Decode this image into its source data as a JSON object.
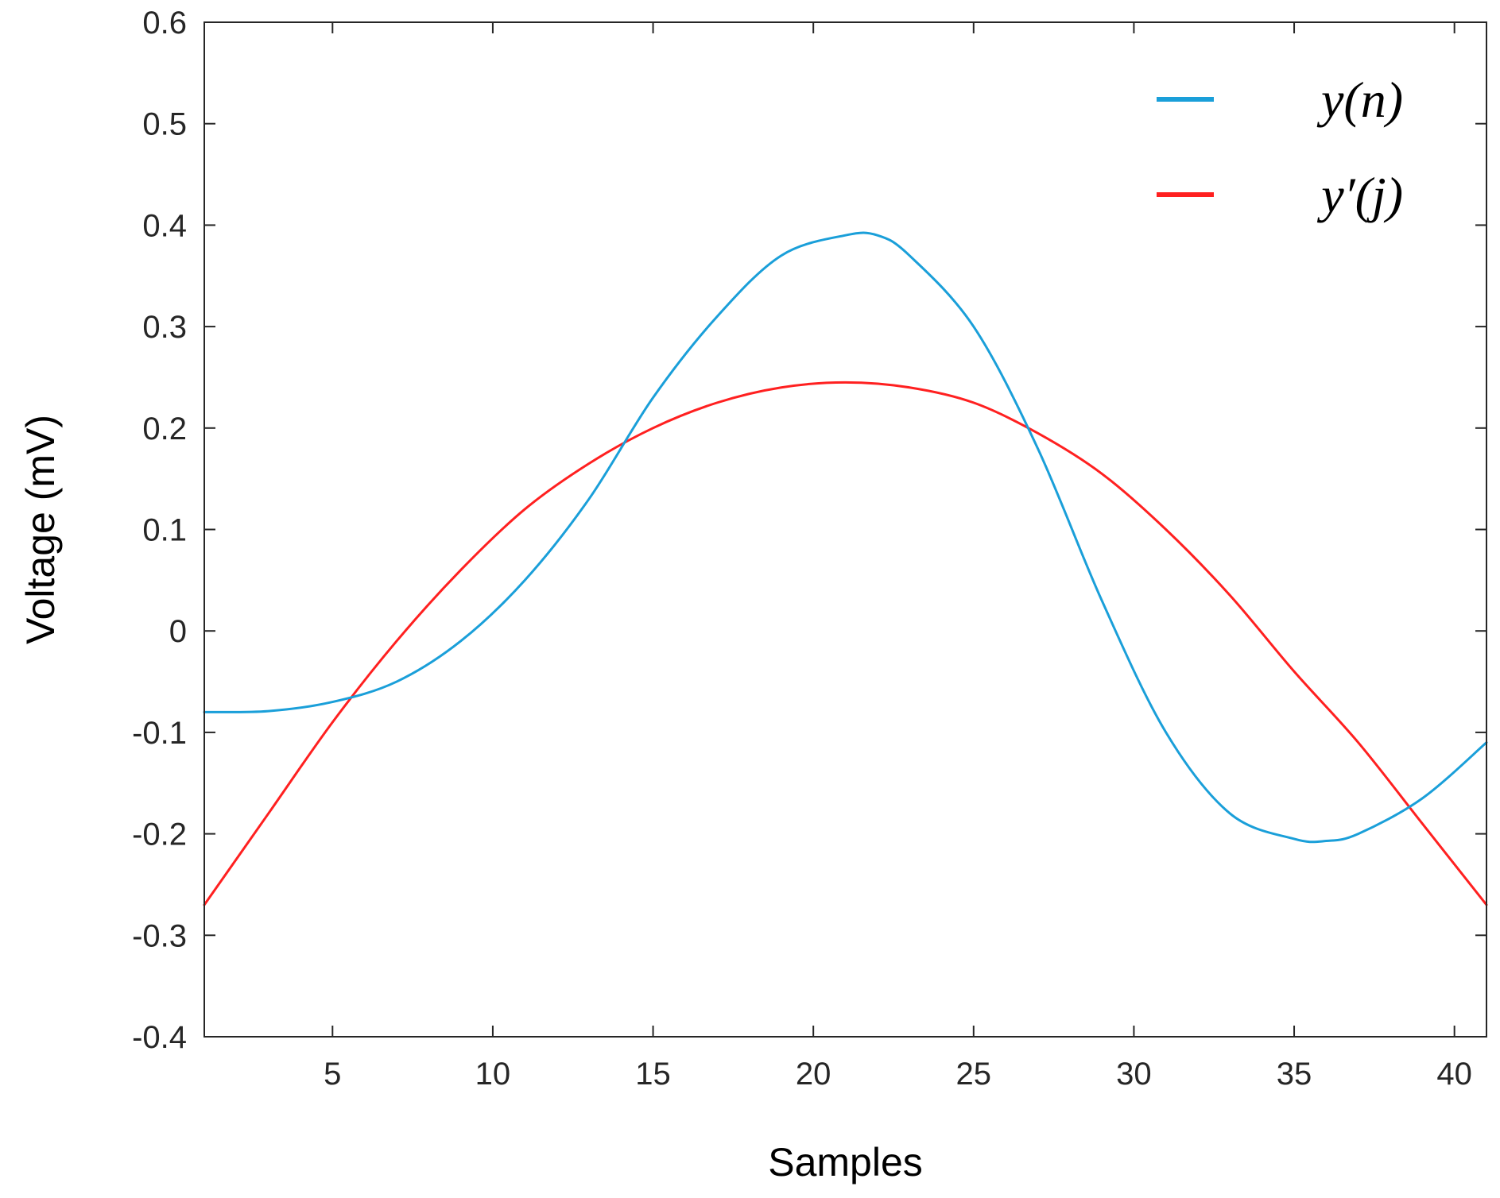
{
  "chart_data": {
    "type": "line",
    "title": "",
    "xlabel": "Samples",
    "ylabel": "Voltage (mV)",
    "xlim": [
      1,
      41
    ],
    "ylim": [
      -0.4,
      0.6
    ],
    "x_ticks": [
      5,
      10,
      15,
      20,
      25,
      30,
      35,
      40
    ],
    "x_tick_labels": [
      "5",
      "10",
      "15",
      "20",
      "25",
      "30",
      "35",
      "40"
    ],
    "y_ticks": [
      0.6,
      0.5,
      0.4,
      0.3,
      0.2,
      0.1,
      0,
      -0.1,
      -0.2,
      -0.3,
      -0.4
    ],
    "y_tick_labels": [
      "0.6",
      "0.5",
      "0.4",
      "0.3",
      "0.2",
      "0.1",
      "0",
      "-0.1",
      "-0.2",
      "-0.3",
      "-0.4"
    ],
    "grid": false,
    "legend_position": "top-right",
    "series": [
      {
        "name": "y(n)",
        "legend_label": "y(n)",
        "color": "#1a9fd9",
        "x": [
          1,
          3,
          5,
          7,
          9,
          11,
          13,
          15,
          17,
          19,
          21,
          22,
          23,
          25,
          27,
          29,
          31,
          33,
          35,
          36,
          37,
          39,
          41
        ],
        "y": [
          -0.08,
          -0.079,
          -0.07,
          -0.05,
          -0.01,
          0.05,
          0.13,
          0.23,
          0.31,
          0.37,
          0.39,
          0.39,
          0.37,
          0.3,
          0.18,
          0.03,
          -0.1,
          -0.18,
          -0.205,
          -0.207,
          -0.2,
          -0.165,
          -0.11
        ]
      },
      {
        "name": "y'(j)",
        "legend_label": "y′(j)",
        "color": "#ff2020",
        "x": [
          1,
          3,
          5,
          7,
          9,
          11,
          13,
          15,
          17,
          19,
          21,
          23,
          25,
          27,
          29,
          31,
          33,
          35,
          37,
          39,
          41
        ],
        "y": [
          -0.27,
          -0.18,
          -0.09,
          -0.01,
          0.06,
          0.12,
          0.165,
          0.2,
          0.225,
          0.24,
          0.245,
          0.24,
          0.225,
          0.195,
          0.155,
          0.1,
          0.035,
          -0.04,
          -0.11,
          -0.19,
          -0.27
        ]
      }
    ]
  }
}
